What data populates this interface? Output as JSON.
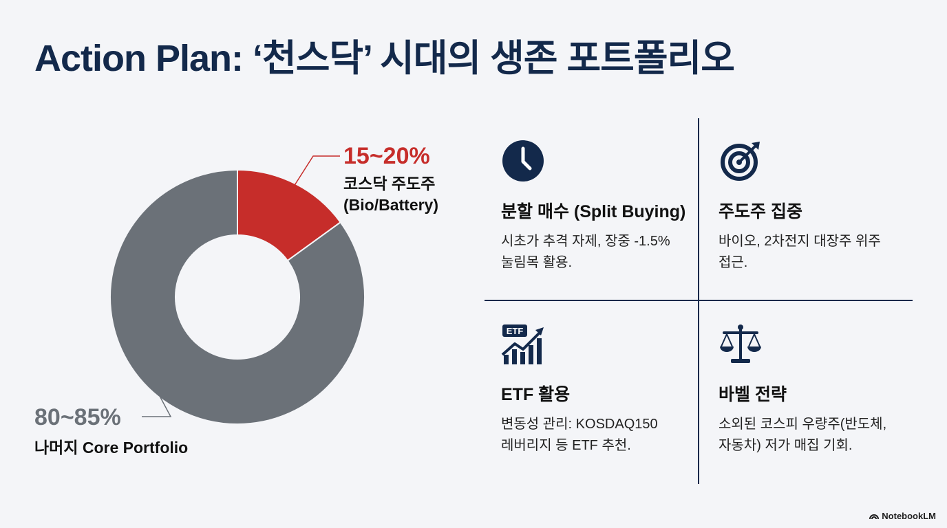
{
  "title": "Action Plan: ‘천스닥’ 시대의 생존 포트폴리오",
  "chart_data": {
    "type": "pie",
    "categories": [
      "코스닥 주도주 (Bio/Battery)",
      "나머지 Core Portfolio"
    ],
    "values": [
      15,
      85
    ],
    "labels": [
      {
        "value_text": "15~20%",
        "name": "코스닥 주도주",
        "name2": "(Bio/Battery)"
      },
      {
        "value_text": "80~85%",
        "name": "나머지 Core Portfolio"
      }
    ],
    "colors": [
      "#c62d2a",
      "#6b7178"
    ],
    "donut": true
  },
  "strategies": [
    {
      "icon": "clock-icon",
      "title": "분할 매수 (Split Buying)",
      "desc": "시초가 추격 자제, 장중 -1.5%\n눌림목 활용."
    },
    {
      "icon": "target-icon",
      "title": "주도주 집중",
      "desc": "바이오, 2차전지 대장주 위주\n접근."
    },
    {
      "icon": "etf-growth-icon",
      "icon_text": "ETF",
      "title": "ETF 활용",
      "desc": "변동성 관리: KOSDAQ150\n레버리지 등 ETF 추천."
    },
    {
      "icon": "balance-scale-icon",
      "title": "바벨 전략",
      "desc": "소외된 코스피 우량주(반도체,\n자동차) 저가 매집 기회."
    }
  ],
  "footer": {
    "brand": "NotebookLM"
  },
  "colors": {
    "navy": "#13294b",
    "red": "#c62d2a",
    "gray": "#6b7178",
    "background": "#f4f5f8"
  }
}
